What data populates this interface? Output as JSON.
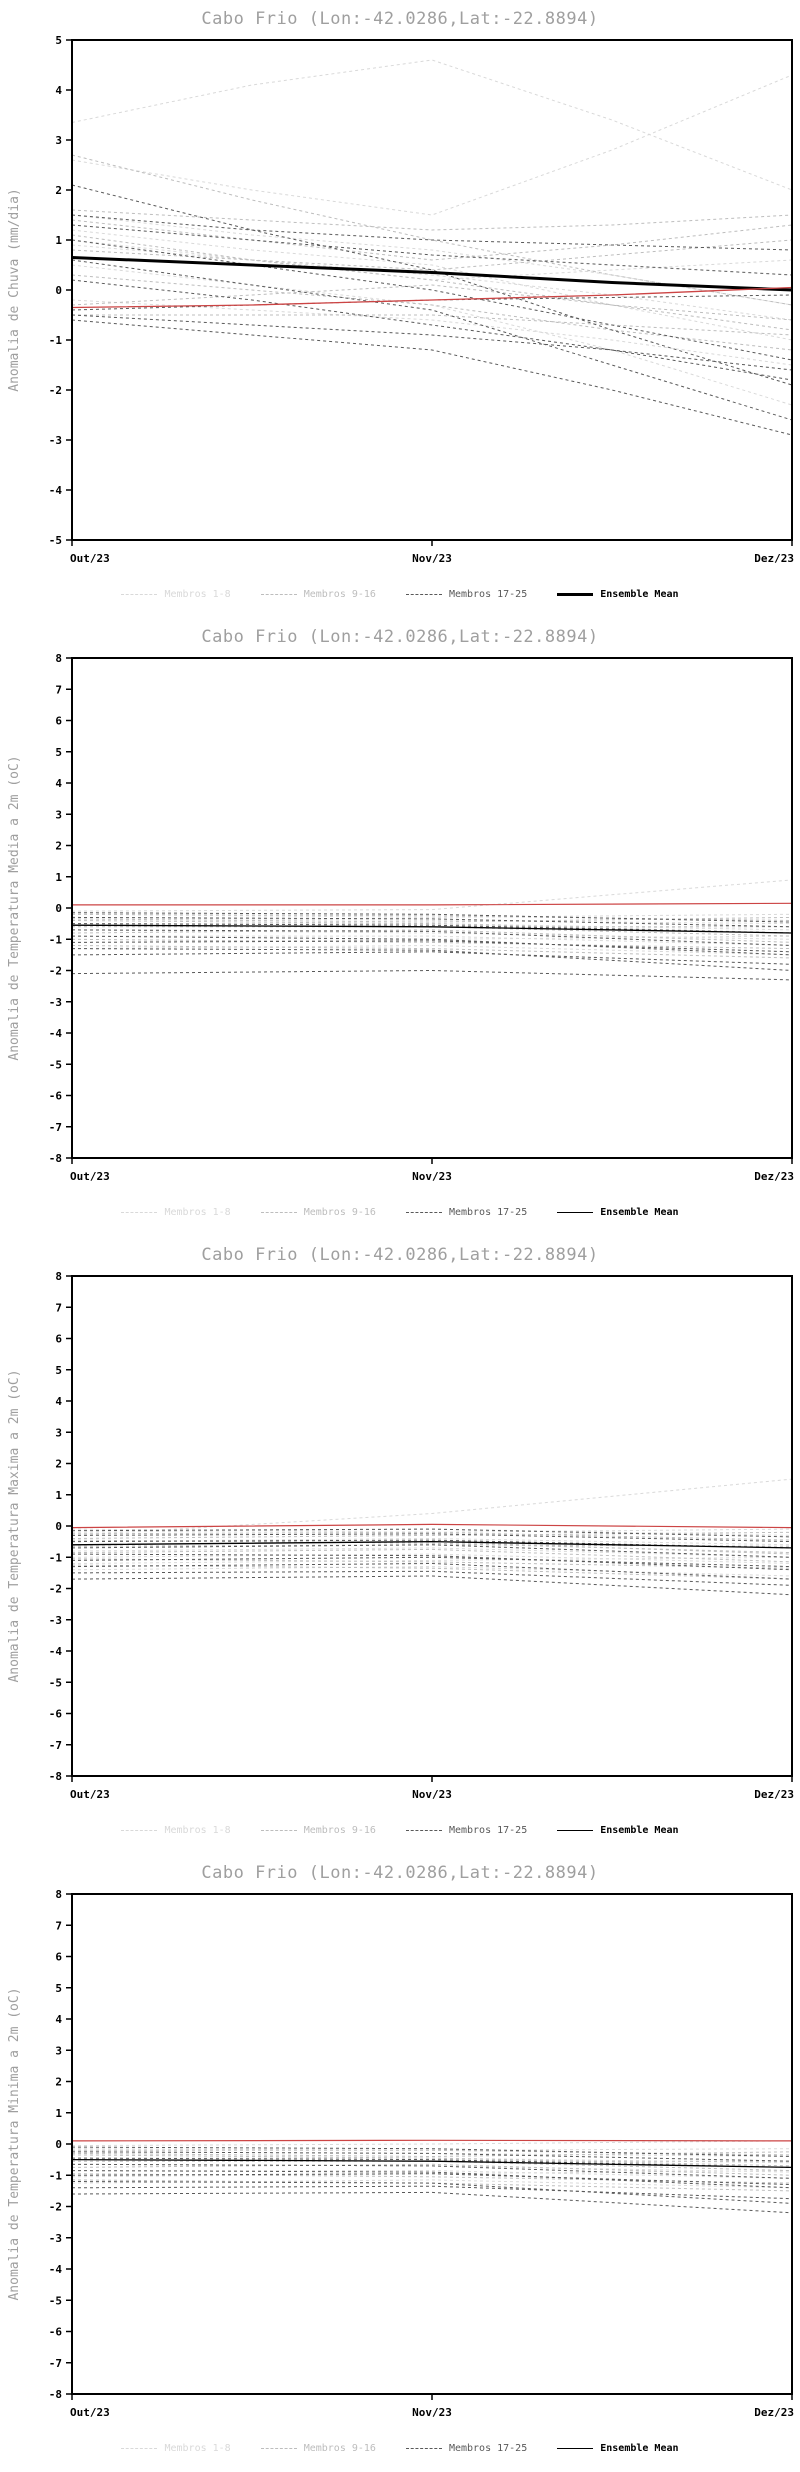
{
  "page": {
    "background": "#ffffff"
  },
  "chart_data": [
    {
      "type": "line",
      "title": "Cabo Frio (Lon:-42.0286,Lat:-22.8894)",
      "ylabel": "Anomalia de Chuva (mm/dia)",
      "x_labels": [
        "Out/23",
        "Nov/23",
        "Dez/23"
      ],
      "ylim": [
        -5,
        5
      ],
      "ytick_step": 1,
      "legend": [
        "Membros 1-8",
        "Membros 9-16",
        "Membros 17-25",
        "Ensemble Mean"
      ],
      "groups": [
        {
          "name": "Membros 1-8",
          "color": "#d9d9d9",
          "dash": "3,3",
          "width": 1,
          "series": [
            [
              3.35,
              4.1,
              4.6,
              3.4,
              2.0
            ],
            [
              2.6,
              2.0,
              1.5,
              2.8,
              4.3
            ],
            [
              1.5,
              1.1,
              0.8,
              0.3,
              -0.3
            ],
            [
              1.2,
              0.8,
              0.5,
              -0.3,
              -1.0
            ],
            [
              0.9,
              0.6,
              0.3,
              -0.1,
              -0.6
            ],
            [
              0.5,
              0.1,
              -0.3,
              -1.2,
              -2.3
            ],
            [
              -0.2,
              -0.4,
              -0.6,
              -1.0,
              -1.5
            ],
            [
              1.0,
              0.6,
              0.2,
              0.4,
              0.6
            ]
          ]
        },
        {
          "name": "Membros 9-16",
          "color": "#bdbdbd",
          "dash": "3,3",
          "width": 1,
          "series": [
            [
              2.7,
              1.8,
              1.0,
              0.3,
              -0.3
            ],
            [
              1.4,
              1.0,
              0.6,
              0.9,
              1.3
            ],
            [
              1.1,
              0.6,
              0.2,
              -0.3,
              -0.8
            ],
            [
              0.8,
              0.6,
              0.4,
              0.7,
              1.0
            ],
            [
              0.3,
              0.0,
              -0.3,
              -0.8,
              -1.2
            ],
            [
              -0.3,
              -0.1,
              0.1,
              -0.3,
              -0.6
            ],
            [
              -0.5,
              -0.5,
              -0.5,
              -0.7,
              -0.9
            ],
            [
              1.6,
              1.4,
              1.2,
              1.3,
              1.5
            ]
          ]
        },
        {
          "name": "Membros 17-25",
          "color": "#595959",
          "dash": "3,3",
          "width": 1,
          "series": [
            [
              2.1,
              1.2,
              0.4,
              -0.8,
              -1.9
            ],
            [
              1.5,
              1.2,
              1.0,
              0.9,
              0.8
            ],
            [
              1.0,
              0.5,
              0.0,
              -0.7,
              -1.4
            ],
            [
              0.6,
              0.1,
              -0.4,
              -1.5,
              -2.6
            ],
            [
              0.2,
              -0.2,
              -0.7,
              -1.2,
              -1.8
            ],
            [
              -0.4,
              -0.3,
              -0.2,
              -0.15,
              -0.1
            ],
            [
              -0.6,
              -0.9,
              -1.2,
              -2.0,
              -2.9
            ],
            [
              1.3,
              1.0,
              0.7,
              0.5,
              0.3
            ],
            [
              -0.5,
              -0.7,
              -0.9,
              -1.2,
              -1.6
            ]
          ]
        },
        {
          "name": "Ensemble Mean",
          "color": "#000000",
          "dash": "",
          "width": 3,
          "series": [
            [
              0.65,
              0.5,
              0.35,
              0.15,
              0.0
            ]
          ]
        },
        {
          "name": "red-line",
          "color": "#cc4444",
          "dash": "",
          "width": 1.3,
          "series": [
            [
              -0.35,
              -0.3,
              -0.2,
              -0.1,
              0.05
            ]
          ]
        }
      ]
    },
    {
      "type": "line",
      "title": "Cabo Frio (Lon:-42.0286,Lat:-22.8894)",
      "ylabel": "Anomalia de Temperatura Media a 2m (oC)",
      "x_labels": [
        "Out/23",
        "Nov/23",
        "Dez/23"
      ],
      "ylim": [
        -8,
        8
      ],
      "ytick_step": 1,
      "legend": [
        "Membros 1-8",
        "Membros 9-16",
        "Membros 17-25",
        "Ensemble Mean"
      ],
      "groups": [
        {
          "name": "Membros 1-8",
          "color": "#d9d9d9",
          "dash": "3,3",
          "width": 1,
          "series": [
            [
              -0.1,
              -0.05,
              0.9
            ],
            [
              -0.3,
              -0.4,
              -0.5
            ],
            [
              -0.5,
              -0.5,
              -0.7
            ],
            [
              -0.7,
              -0.8,
              -1.0
            ],
            [
              -0.9,
              -0.9,
              -1.2
            ],
            [
              -1.1,
              -1.0,
              -0.9
            ],
            [
              -1.3,
              -1.2,
              -1.5
            ],
            [
              -0.2,
              -0.3,
              -0.2
            ]
          ]
        },
        {
          "name": "Membros 9-16",
          "color": "#bdbdbd",
          "dash": "3,3",
          "width": 1,
          "series": [
            [
              -0.2,
              -0.25,
              -0.4
            ],
            [
              -0.4,
              -0.5,
              -0.8
            ],
            [
              -0.6,
              -0.6,
              -0.6
            ],
            [
              -0.8,
              -0.7,
              -1.1
            ],
            [
              -1.0,
              -1.1,
              -1.3
            ],
            [
              -1.2,
              -1.3,
              -1.6
            ],
            [
              -0.35,
              -0.45,
              -0.3
            ],
            [
              -0.55,
              -0.6,
              -0.9
            ]
          ]
        },
        {
          "name": "Membros 17-25",
          "color": "#595959",
          "dash": "3,3",
          "width": 1,
          "series": [
            [
              -2.1,
              -2.0,
              -2.3
            ],
            [
              -1.5,
              -1.4,
              -1.8
            ],
            [
              -1.3,
              -1.35,
              -2.0
            ],
            [
              -1.1,
              -1.05,
              -1.4
            ],
            [
              -0.9,
              -1.0,
              -1.5
            ],
            [
              -0.7,
              -0.75,
              -1.2
            ],
            [
              -0.5,
              -0.55,
              -0.8
            ],
            [
              -0.3,
              -0.35,
              -0.6
            ],
            [
              -0.15,
              -0.2,
              -0.45
            ]
          ]
        },
        {
          "name": "Ensemble Mean",
          "color": "#000000",
          "dash": "",
          "width": 1.3,
          "series": [
            [
              -0.55,
              -0.6,
              -0.8
            ]
          ]
        },
        {
          "name": "red-line",
          "color": "#cc4444",
          "dash": "",
          "width": 1.2,
          "series": [
            [
              0.1,
              0.1,
              0.15
            ]
          ]
        }
      ]
    },
    {
      "type": "line",
      "title": "Cabo Frio (Lon:-42.0286,Lat:-22.8894)",
      "ylabel": "Anomalia de Temperatura Maxima a 2m (oC)",
      "x_labels": [
        "Out/23",
        "Nov/23",
        "Dez/23"
      ],
      "ylim": [
        -8,
        8
      ],
      "ytick_step": 1,
      "legend": [
        "Membros 1-8",
        "Membros 9-16",
        "Membros 17-25",
        "Ensemble Mean"
      ],
      "groups": [
        {
          "name": "Membros 1-8",
          "color": "#d9d9d9",
          "dash": "3,3",
          "width": 1,
          "series": [
            [
              -0.3,
              0.4,
              1.5
            ],
            [
              -0.2,
              -0.1,
              -0.3
            ],
            [
              -0.5,
              -0.4,
              -0.6
            ],
            [
              -0.8,
              -0.7,
              -1.0
            ],
            [
              -1.0,
              -0.9,
              -1.2
            ],
            [
              -1.2,
              -1.1,
              -1.0
            ],
            [
              -1.4,
              -1.3,
              -1.6
            ],
            [
              -0.1,
              -0.2,
              -0.1
            ]
          ]
        },
        {
          "name": "Membros 9-16",
          "color": "#bdbdbd",
          "dash": "3,3",
          "width": 1,
          "series": [
            [
              -0.25,
              -0.2,
              -0.45
            ],
            [
              -0.45,
              -0.55,
              -0.85
            ],
            [
              -0.65,
              -0.6,
              -0.65
            ],
            [
              -0.85,
              -0.75,
              -1.15
            ],
            [
              -1.05,
              -1.15,
              -1.35
            ],
            [
              -1.25,
              -1.35,
              -1.7
            ],
            [
              -0.4,
              -0.3,
              -0.2
            ],
            [
              -0.6,
              -0.5,
              -0.9
            ]
          ]
        },
        {
          "name": "Membros 17-25",
          "color": "#595959",
          "dash": "3,3",
          "width": 1,
          "series": [
            [
              -1.7,
              -1.6,
              -2.2
            ],
            [
              -1.5,
              -1.45,
              -1.9
            ],
            [
              -1.3,
              -1.2,
              -1.7
            ],
            [
              -1.1,
              -1.0,
              -1.3
            ],
            [
              -0.9,
              -0.95,
              -1.4
            ],
            [
              -0.7,
              -0.6,
              -1.0
            ],
            [
              -0.5,
              -0.45,
              -0.7
            ],
            [
              -0.3,
              -0.25,
              -0.5
            ],
            [
              -0.15,
              -0.1,
              -0.35
            ]
          ]
        },
        {
          "name": "Ensemble Mean",
          "color": "#000000",
          "dash": "",
          "width": 1.3,
          "series": [
            [
              -0.6,
              -0.5,
              -0.7
            ]
          ]
        },
        {
          "name": "red-line",
          "color": "#cc4444",
          "dash": "",
          "width": 1.2,
          "series": [
            [
              -0.05,
              0.05,
              -0.05
            ]
          ]
        }
      ]
    },
    {
      "type": "line",
      "title": "Cabo Frio (Lon:-42.0286,Lat:-22.8894)",
      "ylabel": "Anomalia de Temperatura Minima a 2m (oC)",
      "x_labels": [
        "Out/23",
        "Nov/23",
        "Dez/23"
      ],
      "ylim": [
        -8,
        8
      ],
      "ytick_step": 1,
      "legend": [
        "Membros 1-8",
        "Membros 9-16",
        "Membros 17-25",
        "Ensemble Mean"
      ],
      "groups": [
        {
          "name": "Membros 1-8",
          "color": "#d9d9d9",
          "dash": "3,3",
          "width": 1,
          "series": [
            [
              -0.05,
              0.0,
              0.1
            ],
            [
              -0.25,
              -0.3,
              -0.4
            ],
            [
              -0.45,
              -0.45,
              -0.6
            ],
            [
              -0.65,
              -0.7,
              -0.9
            ],
            [
              -0.85,
              -0.85,
              -1.1
            ],
            [
              -1.05,
              -0.95,
              -0.85
            ],
            [
              -1.25,
              -1.15,
              -1.4
            ],
            [
              -0.15,
              -0.2,
              -0.15
            ]
          ]
        },
        {
          "name": "Membros 9-16",
          "color": "#bdbdbd",
          "dash": "3,3",
          "width": 1,
          "series": [
            [
              -0.2,
              -0.2,
              -0.35
            ],
            [
              -0.35,
              -0.45,
              -0.7
            ],
            [
              -0.55,
              -0.55,
              -0.55
            ],
            [
              -0.75,
              -0.65,
              -1.0
            ],
            [
              -0.95,
              -1.05,
              -1.25
            ],
            [
              -1.15,
              -1.25,
              -1.5
            ],
            [
              -0.3,
              -0.4,
              -0.25
            ],
            [
              -0.5,
              -0.55,
              -0.85
            ]
          ]
        },
        {
          "name": "Membros 17-25",
          "color": "#595959",
          "dash": "3,3",
          "width": 1,
          "series": [
            [
              -1.6,
              -1.55,
              -2.2
            ],
            [
              -1.4,
              -1.35,
              -1.75
            ],
            [
              -1.2,
              -1.25,
              -1.9
            ],
            [
              -1.0,
              -0.95,
              -1.3
            ],
            [
              -0.85,
              -0.9,
              -1.4
            ],
            [
              -0.65,
              -0.7,
              -1.1
            ],
            [
              -0.45,
              -0.5,
              -0.75
            ],
            [
              -0.25,
              -0.3,
              -0.55
            ],
            [
              -0.1,
              -0.15,
              -0.4
            ]
          ]
        },
        {
          "name": "Ensemble Mean",
          "color": "#000000",
          "dash": "",
          "width": 1.3,
          "series": [
            [
              -0.5,
              -0.55,
              -0.75
            ]
          ]
        },
        {
          "name": "red-line",
          "color": "#cc4444",
          "dash": "",
          "width": 1.2,
          "series": [
            [
              0.1,
              0.12,
              0.1
            ]
          ]
        }
      ]
    }
  ]
}
